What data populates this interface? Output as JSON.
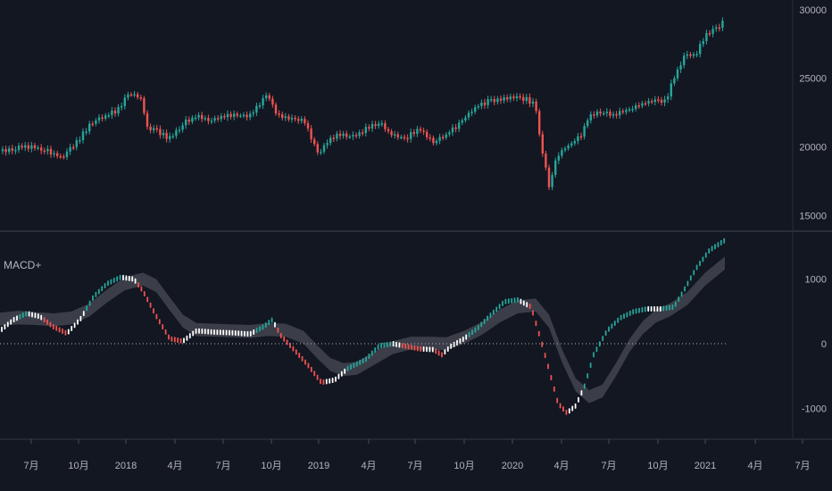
{
  "chart_data": [
    {
      "type": "candlestick",
      "panel": "price",
      "y_ticks": [
        15000,
        20000,
        25000,
        30000
      ],
      "ylim": [
        14200,
        30700
      ],
      "colors": {
        "up": "#26a69a",
        "down": "#ef5350"
      },
      "x_ticks": [
        "7月",
        "10月",
        "2018",
        "4月",
        "7月",
        "10月",
        "2019",
        "4月",
        "7月",
        "10月",
        "2020",
        "4月",
        "7月",
        "10月",
        "2021",
        "4月",
        "7月"
      ],
      "weekly_close": [
        [
          0,
          19700
        ],
        [
          20,
          20000
        ],
        [
          45,
          19950
        ],
        [
          70,
          19200
        ],
        [
          85,
          20300
        ],
        [
          100,
          21600
        ],
        [
          115,
          22200
        ],
        [
          130,
          22600
        ],
        [
          145,
          23900
        ],
        [
          158,
          23500
        ],
        [
          165,
          21400
        ],
        [
          175,
          21200
        ],
        [
          190,
          20600
        ],
        [
          205,
          21700
        ],
        [
          220,
          22300
        ],
        [
          235,
          22000
        ],
        [
          250,
          22200
        ],
        [
          265,
          22300
        ],
        [
          280,
          22300
        ],
        [
          300,
          23800
        ],
        [
          310,
          22300
        ],
        [
          325,
          22000
        ],
        [
          340,
          22000
        ],
        [
          350,
          20500
        ],
        [
          358,
          19400
        ],
        [
          365,
          20400
        ],
        [
          380,
          21000
        ],
        [
          395,
          20700
        ],
        [
          410,
          21300
        ],
        [
          425,
          21800
        ],
        [
          440,
          20800
        ],
        [
          455,
          20700
        ],
        [
          470,
          21300
        ],
        [
          485,
          20300
        ],
        [
          500,
          20900
        ],
        [
          515,
          21700
        ],
        [
          530,
          22800
        ],
        [
          545,
          23300
        ],
        [
          560,
          23500
        ],
        [
          575,
          23600
        ],
        [
          590,
          23500
        ],
        [
          600,
          23000
        ],
        [
          605,
          20500
        ],
        [
          610,
          19000
        ],
        [
          615,
          17000
        ],
        [
          620,
          18500
        ],
        [
          625,
          19500
        ],
        [
          635,
          20000
        ],
        [
          650,
          20800
        ],
        [
          660,
          22200
        ],
        [
          670,
          22600
        ],
        [
          685,
          22300
        ],
        [
          700,
          22600
        ],
        [
          715,
          23100
        ],
        [
          730,
          23300
        ],
        [
          745,
          23300
        ],
        [
          755,
          25000
        ],
        [
          765,
          26500
        ],
        [
          780,
          26800
        ],
        [
          790,
          28100
        ],
        [
          800,
          28500
        ],
        [
          812,
          29200
        ]
      ]
    },
    {
      "type": "line",
      "panel": "indicator",
      "name": "MACD+",
      "y_ticks": [
        -1000,
        0,
        1000
      ],
      "ylim": [
        -1450,
        1700
      ],
      "zero_line": true,
      "colors": {
        "rising": "#26a69a",
        "falling": "#ef5350",
        "neutral": "#ffffff",
        "signal_band": "#4a4c55"
      },
      "macd": [
        [
          0,
          200
        ],
        [
          15,
          370
        ],
        [
          30,
          470
        ],
        [
          45,
          420
        ],
        [
          60,
          260
        ],
        [
          75,
          160
        ],
        [
          90,
          380
        ],
        [
          105,
          730
        ],
        [
          120,
          930
        ],
        [
          135,
          1030
        ],
        [
          150,
          1000
        ],
        [
          160,
          820
        ],
        [
          175,
          430
        ],
        [
          190,
          80
        ],
        [
          205,
          40
        ],
        [
          220,
          200
        ],
        [
          240,
          180
        ],
        [
          260,
          170
        ],
        [
          280,
          150
        ],
        [
          295,
          260
        ],
        [
          305,
          370
        ],
        [
          315,
          120
        ],
        [
          330,
          -100
        ],
        [
          345,
          -330
        ],
        [
          360,
          -600
        ],
        [
          375,
          -560
        ],
        [
          390,
          -380
        ],
        [
          410,
          -240
        ],
        [
          425,
          -30
        ],
        [
          440,
          0
        ],
        [
          455,
          -40
        ],
        [
          470,
          -80
        ],
        [
          485,
          -90
        ],
        [
          495,
          -170
        ],
        [
          505,
          -40
        ],
        [
          520,
          80
        ],
        [
          535,
          240
        ],
        [
          550,
          450
        ],
        [
          565,
          650
        ],
        [
          580,
          680
        ],
        [
          595,
          570
        ],
        [
          605,
          100
        ],
        [
          615,
          -400
        ],
        [
          625,
          -920
        ],
        [
          635,
          -1070
        ],
        [
          645,
          -960
        ],
        [
          655,
          -650
        ],
        [
          665,
          -170
        ],
        [
          680,
          200
        ],
        [
          695,
          400
        ],
        [
          710,
          500
        ],
        [
          725,
          540
        ],
        [
          740,
          540
        ],
        [
          755,
          570
        ],
        [
          765,
          800
        ],
        [
          780,
          1170
        ],
        [
          795,
          1450
        ],
        [
          812,
          1600
        ]
      ],
      "signal_band": [
        [
          0,
          280,
          480
        ],
        [
          20,
          300,
          510
        ],
        [
          40,
          290,
          490
        ],
        [
          60,
          270,
          470
        ],
        [
          80,
          300,
          500
        ],
        [
          100,
          420,
          620
        ],
        [
          120,
          640,
          840
        ],
        [
          140,
          830,
          1030
        ],
        [
          160,
          900,
          1100
        ],
        [
          175,
          800,
          1000
        ],
        [
          190,
          520,
          720
        ],
        [
          205,
          250,
          450
        ],
        [
          220,
          120,
          320
        ],
        [
          240,
          110,
          310
        ],
        [
          260,
          100,
          300
        ],
        [
          280,
          90,
          290
        ],
        [
          300,
          120,
          320
        ],
        [
          320,
          110,
          310
        ],
        [
          340,
          0,
          200
        ],
        [
          355,
          -220,
          -20
        ],
        [
          370,
          -420,
          -220
        ],
        [
          385,
          -500,
          -300
        ],
        [
          400,
          -480,
          -280
        ],
        [
          420,
          -320,
          -120
        ],
        [
          440,
          -160,
          40
        ],
        [
          460,
          -90,
          110
        ],
        [
          480,
          -90,
          110
        ],
        [
          500,
          -100,
          100
        ],
        [
          520,
          0,
          200
        ],
        [
          540,
          140,
          340
        ],
        [
          560,
          330,
          530
        ],
        [
          580,
          470,
          670
        ],
        [
          600,
          500,
          700
        ],
        [
          615,
          250,
          450
        ],
        [
          630,
          -300,
          -100
        ],
        [
          645,
          -740,
          -540
        ],
        [
          660,
          -920,
          -720
        ],
        [
          675,
          -830,
          -630
        ],
        [
          690,
          -500,
          -300
        ],
        [
          705,
          -130,
          70
        ],
        [
          720,
          150,
          350
        ],
        [
          735,
          330,
          530
        ],
        [
          750,
          420,
          620
        ],
        [
          770,
          600,
          800
        ],
        [
          790,
          900,
          1100
        ],
        [
          812,
          1150,
          1350
        ]
      ]
    }
  ]
}
